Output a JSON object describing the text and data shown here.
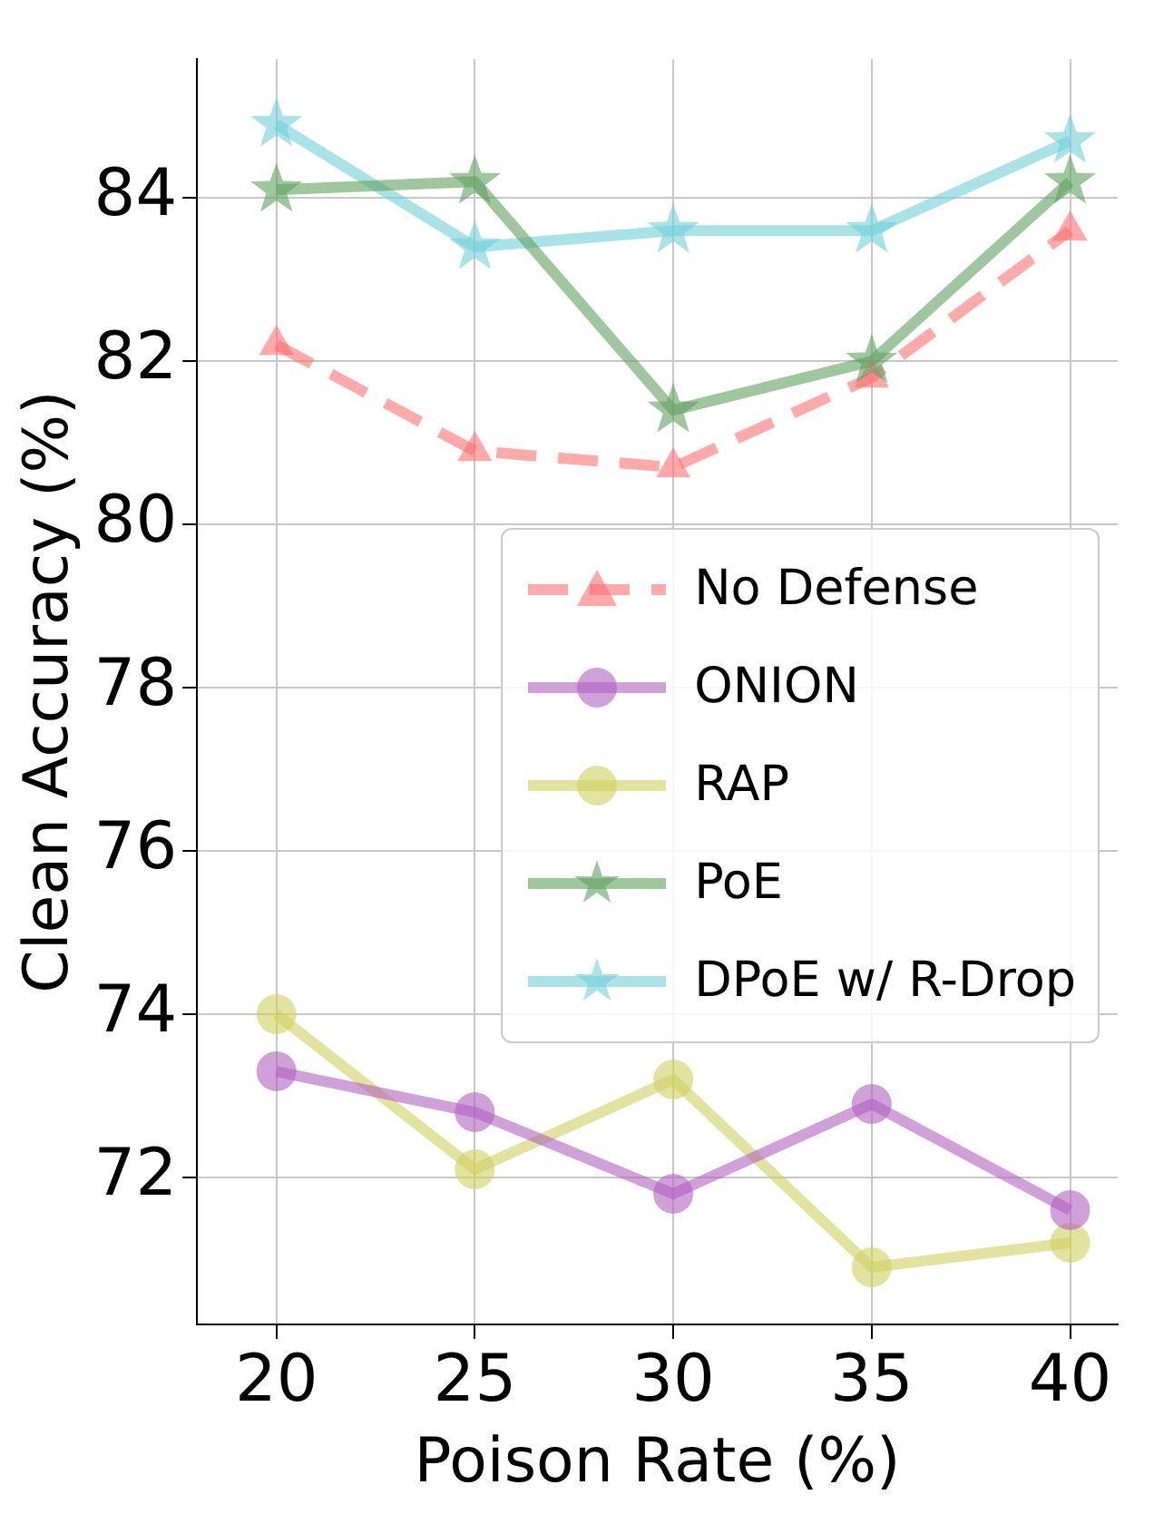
{
  "chart_data": {
    "type": "line",
    "xlabel": "Poison Rate (%)",
    "ylabel": "Clean Accuracy (%)",
    "x": [
      20,
      25,
      30,
      35,
      40
    ],
    "xlim": [
      18,
      41.2
    ],
    "xticks": [
      20,
      25,
      30,
      35,
      40
    ],
    "ylim": [
      70.2,
      85.7
    ],
    "yticks": [
      72,
      74,
      76,
      78,
      80,
      82,
      84
    ],
    "grid": true,
    "legend": "right",
    "series": [
      {
        "name": "No Defense",
        "color": "#ff7070",
        "marker": "triangle",
        "line_style": "dashed",
        "values": [
          82.2,
          80.9,
          80.7,
          81.8,
          83.6
        ]
      },
      {
        "name": "ONION",
        "color": "#b060c0",
        "marker": "circle",
        "line_style": "solid",
        "values": [
          73.3,
          72.8,
          71.8,
          72.9,
          71.6
        ]
      },
      {
        "name": "RAP",
        "color": "#d0d060",
        "marker": "circle",
        "line_style": "solid",
        "values": [
          74.0,
          72.1,
          73.2,
          70.9,
          71.2
        ]
      },
      {
        "name": "PoE",
        "color": "#60a060",
        "marker": "star",
        "line_style": "solid",
        "values": [
          84.1,
          84.2,
          81.4,
          82.0,
          84.2
        ]
      },
      {
        "name": "DPoE w/ R-Drop",
        "color": "#70d0d8",
        "marker": "star",
        "line_style": "solid",
        "values": [
          84.9,
          83.4,
          83.6,
          83.6,
          84.7
        ]
      }
    ]
  }
}
